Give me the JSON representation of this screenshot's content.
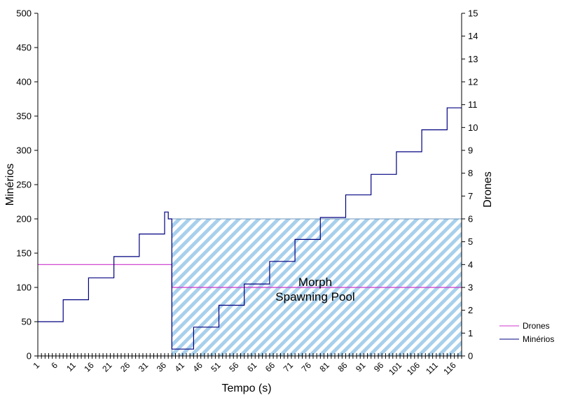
{
  "chart_data": {
    "type": "line",
    "title": "",
    "xlabel": "Tempo (s)",
    "ylabel_left": "Minérios",
    "ylabel_right": "Drones",
    "ylim_left": [
      0,
      500
    ],
    "ylim_right": [
      0,
      15
    ],
    "xlim": [
      1,
      118
    ],
    "yticks_left": [
      "0",
      "50",
      "100",
      "150",
      "200",
      "250",
      "300",
      "350",
      "400",
      "450",
      "500"
    ],
    "yticks_right": [
      "0",
      "1",
      "2",
      "3",
      "4",
      "5",
      "6",
      "7",
      "8",
      "9",
      "10",
      "11",
      "12",
      "13",
      "14",
      "15"
    ],
    "xtick_labels": [
      "1",
      "6",
      "11",
      "16",
      "21",
      "26",
      "31",
      "36",
      "41",
      "46",
      "51",
      "56",
      "61",
      "66",
      "71",
      "76",
      "81",
      "86",
      "91",
      "96",
      "101",
      "106",
      "111",
      "116"
    ],
    "grid": false,
    "legend_position": "right",
    "series": [
      {
        "name": "Drones",
        "axis": "right",
        "color": "#cc33cc",
        "x": [
          1,
          38,
          38,
          118
        ],
        "y": [
          4,
          4,
          3,
          3
        ]
      },
      {
        "name": "Minérios",
        "axis": "left",
        "color": "#000080",
        "x": [
          1,
          8,
          8,
          15,
          15,
          22,
          22,
          29,
          29,
          36,
          36,
          37,
          37,
          38,
          38,
          44,
          44,
          51,
          51,
          58,
          58,
          65,
          65,
          72,
          72,
          79,
          79,
          86,
          86,
          93,
          93,
          100,
          100,
          107,
          107,
          114,
          114,
          118
        ],
        "y": [
          50,
          50,
          82,
          82,
          114,
          114,
          145,
          145,
          178,
          178,
          210,
          210,
          200,
          200,
          10,
          10,
          42,
          42,
          74,
          74,
          105,
          105,
          138,
          138,
          170,
          170,
          202,
          202,
          235,
          235,
          265,
          265,
          298,
          298,
          330,
          330,
          362,
          362
        ]
      }
    ],
    "annotations": [
      {
        "label_line1": "Morph",
        "label_line2": "Spawning Pool",
        "x_range": [
          38,
          118
        ],
        "y_range": [
          0,
          200
        ],
        "fill": "#a8d0ec"
      }
    ]
  }
}
